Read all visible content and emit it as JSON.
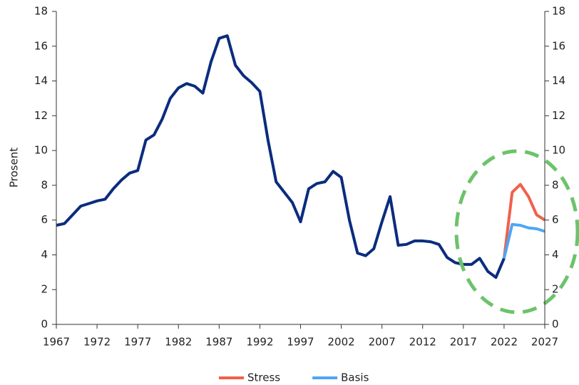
{
  "chart_data": {
    "type": "line",
    "y_label": "Prosent",
    "xlim": [
      1967,
      2027
    ],
    "xticks": [
      1967,
      1972,
      1977,
      1982,
      1987,
      1992,
      1997,
      2002,
      2007,
      2012,
      2017,
      2022,
      2027
    ],
    "ylim": [
      0,
      18
    ],
    "yticks": [
      0,
      2,
      4,
      6,
      8,
      10,
      12,
      14,
      16,
      18
    ],
    "y2lim": [
      0,
      18
    ],
    "y2ticks": [
      0,
      2,
      4,
      6,
      8,
      10,
      12,
      14,
      16,
      18
    ],
    "legend": "bottom",
    "series": [
      {
        "color": "#0b2c7e",
        "x": [
          1967,
          1968,
          1969,
          1970,
          1971,
          1972,
          1973,
          1974,
          1975,
          1976,
          1977,
          1978,
          1979,
          1980,
          1981,
          1982,
          1983,
          1984,
          1985,
          1986,
          1987,
          1988,
          1989,
          1990,
          1991,
          1992,
          1993,
          1994,
          1995,
          1996,
          1997,
          1998,
          1999,
          2000,
          2001,
          2002,
          2003,
          2004,
          2005,
          2006,
          2007,
          2008,
          2009,
          2010,
          2011,
          2012,
          2013,
          2014,
          2015,
          2016,
          2017,
          2018,
          2019,
          2020,
          2021,
          2022
        ],
        "values": [
          5.7,
          5.8,
          6.3,
          6.8,
          6.95,
          7.1,
          7.2,
          7.8,
          8.3,
          8.7,
          8.85,
          10.6,
          10.9,
          11.8,
          13.0,
          13.6,
          13.85,
          13.7,
          13.3,
          15.1,
          16.45,
          16.6,
          14.9,
          14.3,
          13.9,
          13.4,
          10.6,
          8.2,
          7.6,
          7.0,
          5.9,
          7.8,
          8.1,
          8.2,
          8.8,
          8.45,
          6.0,
          4.1,
          3.95,
          4.35,
          5.9,
          7.35,
          4.55,
          4.6,
          4.8,
          4.8,
          4.75,
          4.6,
          3.85,
          3.55,
          3.45,
          3.45,
          3.8,
          3.05,
          2.7,
          3.8
        ]
      },
      {
        "name": "Stress",
        "color": "#f0604a",
        "x": [
          2022,
          2023,
          2024,
          2025,
          2026,
          2027
        ],
        "values": [
          3.8,
          7.6,
          8.05,
          7.35,
          6.3,
          6.0
        ]
      },
      {
        "name": "Basis",
        "color": "#4da6f5",
        "x": [
          2022,
          2023,
          2024,
          2025,
          2026,
          2027
        ],
        "values": [
          3.8,
          5.75,
          5.7,
          5.55,
          5.5,
          5.35
        ]
      }
    ]
  }
}
